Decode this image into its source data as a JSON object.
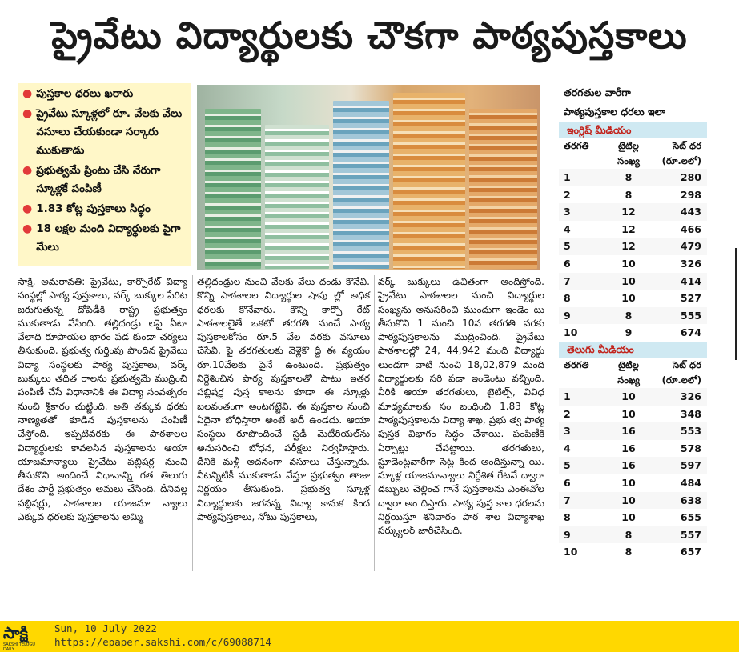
{
  "headline": "ప్రైవేటు విద్యార్థులకు చౌకగా పాఠ్యపుస్తకాలు",
  "bullets": [
    "పుస్తకాల ధరలు ఖరారు",
    "ప్రైవేటు స్కూళ్లలో రూ. వేలకు వేలు వసూలు చేయకుండా సర్కారు ముకుతాడు",
    "ప్రభుత్వమే ప్రింటు చేసి నేరుగా స్కూళ్లకే పంపిణీ",
    "1.83 కోట్ల పుస్తకాలు సిద్ధం",
    "18 లక్షల మంది విద్యార్థులకు పైగా మేలు"
  ],
  "article": {
    "col1": "సాక్షి, అమరావతి: ప్రైవేటు, కార్పొరేట్ విద్యా సంస్థల్లో పాఠ్య పుస్తకాలు, వర్క్ బుక్కుల పేరిట జరుగుతున్న దోపిడీకి రాష్ట్ర ప్రభుత్వం ముకుతాడు వేసింది. తల్లిదండ్రు లపై ఏటా వేలాది రూపాయల భారం పడ కుండా చర్యలు తీసుకుంది. ప్రభుత్వ గుర్తింపు పొందిన ప్రైవేటు విద్యా సంస్థలకు పాఠ్య పుస్తకాలు, వర్క్ బుక్కులు తదిత రాలను ప్రభుత్వమే ముద్రించి పంపిణీ చేసే విధానానికి ఈ విద్యా సంవత్సరం నుంచి శ్రీకారం చుట్టింది. అతి తక్కువ ధరకు నాణ్యతతో కూడిన పుస్తకాలను పంపిణీ చేస్తోంది. ఇప్పటివరకు ఈ పాఠశాలల విద్యార్థులకు కావలసిన పుస్తకాలను ఆయా యాజమాన్యాలు ప్రైవేటు పబ్లిషర్ల నుంచి తీసుకొని అందించే విధానాన్ని గత తెలుగు దేశం పార్టీ ప్రభుత్వం అమలు చేసింది. దీనివల్ల పబ్లిషర్లు, పాఠశాలల యాజమా న్యాలు ఎక్కువ ధరలకు పుస్తకాలను అమ్మి",
    "col2": "తల్లిదండ్రుల నుంచి వేలకు వేలు దండు కొనేవి. కొన్ని పాఠశాలల విద్యార్థుల షాపు ల్లో అధిక ధరలకు కొనేవారు. కొన్ని కార్పొ రేట్ పాఠశాలలైతే ఒకటో తరగతి నుంచే పాఠ్య పుస్తకాలకోసం రూ.5 వేల వరకు వసూలు చేసేవి. పై తరగతులకు వెళ్లేకొ ద్దీ ఈ వ్యయం రూ.10వేలకు పైనే ఉంటుంది. ప్రభుత్వం నిర్దేశించిన పాఠ్య పుస్తకాలతో పాటు ఇతర పబ్లిషర్ల పుస్త కాలను కూడా ఈ స్కూళ్లు బలవంతంగా అంటగట్టేవి. ఈ పుస్తకాల నుంచి ఏదైనా బోధిస్తారా అంటే అదీ ఉండదు. ఆయా సంస్థలు రూపొందించే స్టడీ మెటీరియల్‌ను అనుసరించి బోధన, పరీక్షలు నిర్వహిస్తారు. దీనికి మళ్లీ అదనంగా వసూలు చేస్తున్నారు. వీటన్నిటికీ ముకుతాడు వేస్తూ ప్రభుత్వం తాజా నిర్ణయం తీసుకుంది. ప్రభుత్వ స్కూళ్ల విద్యార్థులకు జగనన్న విద్యా కానుక కింద పాఠ్యపుస్తకాలు, నోటు పుస్తకాలు,",
    "col3": "వర్క్ బుక్కులు ఉచితంగా అందిస్తోంది. ప్రైవేటు పాఠశాలల నుంచి విద్యార్థుల సంఖ్యను అనుసరించి ముందుగా ఇండెం టు తీసుకొని 1 నుంచి 10వ తరగతి వరకు పాఠ్యపుస్తకాలను ముద్రించింది. ప్రైవేటు పాఠశాలల్లో 24, 44,942 మంది విద్యార్థు లుండగా వాటి నుంచి 18,02,879 మంది విద్యార్థులకు సరి పడా ఇండెంటు వచ్చింది. వీరికి ఆయా తరగతులు, టైటిల్స్, వివిధ మాధ్యమాలకు సం బంధించి 1.83 కోట్ల పాఠ్యపుస్తకాలను విద్యా శాఖ, ప్రభు త్వ పాఠ్య పుస్తక విభాగం సిద్ధం చేశాయి. పంపిణీకి ఏర్పాట్లు చేపట్టాయి. తరగతులు, స్టూడెంట్లవారీగా సెట్ల కింద అందిస్తున్నా యి. స్కూళ్ల యాజమాన్యాలు నిర్దేశిత గేటవే ద్వారా డబ్బులు చెల్లించ గానే పుస్తకాలను ఎంఈవోల ద్వారా అం దిస్తారు. పాఠ్య పుస్త కాల ధరలను నిర్ణయిస్తూ శనివారం పాఠ శాల విద్యాశాఖ సర్క్యులర్ జారీచేసింది."
  },
  "table": {
    "title_line1": "తరగతుల వారీగా",
    "title_line2": "పాఠ్యపుస్తకాల ధరలు ఇలా",
    "header": {
      "c1": "తరగతి",
      "c2a": "టైటిల్ల",
      "c2b": "సంఖ్య",
      "c3a": "సెట్ ధర",
      "c3b": "(రూ.లలో)"
    },
    "english": {
      "label": "ఇంగ్లిష్ మీడియం",
      "rows": [
        [
          "1",
          "8",
          "280"
        ],
        [
          "2",
          "8",
          "298"
        ],
        [
          "3",
          "12",
          "443"
        ],
        [
          "4",
          "12",
          "466"
        ],
        [
          "5",
          "12",
          "479"
        ],
        [
          "6",
          "10",
          "326"
        ],
        [
          "7",
          "10",
          "414"
        ],
        [
          "8",
          "10",
          "527"
        ],
        [
          "9",
          "8",
          "555"
        ],
        [
          "10",
          "9",
          "674"
        ]
      ]
    },
    "telugu": {
      "label": "తెలుగు మీడియం",
      "rows": [
        [
          "1",
          "10",
          "326"
        ],
        [
          "2",
          "10",
          "348"
        ],
        [
          "3",
          "16",
          "553"
        ],
        [
          "4",
          "16",
          "578"
        ],
        [
          "5",
          "16",
          "597"
        ],
        [
          "6",
          "10",
          "484"
        ],
        [
          "7",
          "10",
          "638"
        ],
        [
          "8",
          "10",
          "655"
        ],
        [
          "9",
          "8",
          "557"
        ],
        [
          "10",
          "8",
          "657"
        ]
      ]
    }
  },
  "footer": {
    "logo_text": "సాక్షి",
    "logo_tag": "SAKSHI TELUGU DAILY",
    "date": "Sun, 10 July 2022",
    "url": "https://epaper.sakshi.com/c/69088714"
  },
  "colors": {
    "bullet_bg": "#fff7c8",
    "bullet_dot": "#e23a3a",
    "medium_band": "#cfe9f2",
    "medium_text": "#c2241c",
    "footer_bg": "#ffd800"
  }
}
